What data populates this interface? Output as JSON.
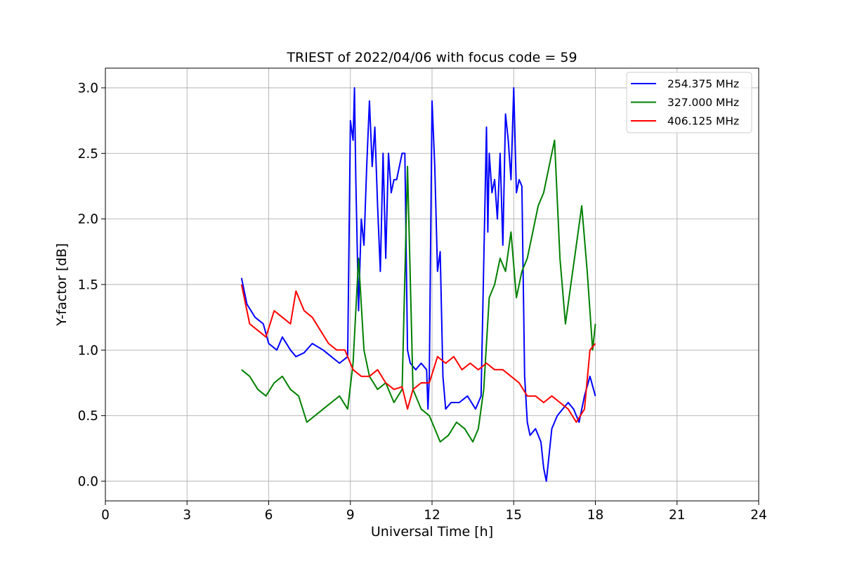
{
  "chart_data": {
    "type": "line",
    "title": "TRIEST of 2022/04/06 with focus code = 59",
    "xlabel": "Universal Time [h]",
    "ylabel": "Y-factor [dB]",
    "xlim": [
      0,
      24
    ],
    "ylim": [
      -0.15,
      3.15
    ],
    "xticks": [
      0,
      3,
      6,
      9,
      12,
      15,
      18,
      21,
      24
    ],
    "xtick_labels": [
      "0",
      "3",
      "6",
      "9",
      "12",
      "15",
      "18",
      "21",
      "24"
    ],
    "yticks": [
      0.0,
      0.5,
      1.0,
      1.5,
      2.0,
      2.5,
      3.0
    ],
    "ytick_labels": [
      "0.0",
      "0.5",
      "1.0",
      "1.5",
      "2.0",
      "2.5",
      "3.0"
    ],
    "grid": true,
    "legend_position": "top-right",
    "series": [
      {
        "name": "254.375 MHz",
        "color": "#0000ff",
        "x": [
          5.0,
          5.2,
          5.5,
          5.8,
          6.0,
          6.3,
          6.5,
          6.8,
          7.0,
          7.3,
          7.6,
          8.0,
          8.3,
          8.6,
          8.9,
          9.0,
          9.1,
          9.15,
          9.2,
          9.3,
          9.4,
          9.5,
          9.6,
          9.7,
          9.8,
          9.9,
          10.0,
          10.1,
          10.2,
          10.3,
          10.4,
          10.5,
          10.6,
          10.7,
          10.8,
          10.9,
          11.0,
          11.1,
          11.2,
          11.4,
          11.6,
          11.8,
          11.85,
          11.9,
          12.0,
          12.1,
          12.2,
          12.3,
          12.4,
          12.5,
          12.7,
          13.0,
          13.3,
          13.6,
          13.8,
          14.0,
          14.05,
          14.1,
          14.2,
          14.3,
          14.4,
          14.5,
          14.6,
          14.7,
          14.8,
          14.9,
          15.0,
          15.1,
          15.2,
          15.3,
          15.4,
          15.5,
          15.6,
          15.8,
          16.0,
          16.1,
          16.2,
          16.4,
          16.6,
          16.8,
          17.0,
          17.2,
          17.4,
          17.6,
          17.8,
          18.0
        ],
        "y": [
          1.55,
          1.35,
          1.25,
          1.2,
          1.05,
          1.0,
          1.1,
          1.0,
          0.95,
          0.98,
          1.05,
          1.0,
          0.95,
          0.9,
          0.95,
          2.75,
          2.6,
          3.0,
          2.3,
          1.3,
          2.0,
          1.8,
          2.4,
          2.9,
          2.4,
          2.7,
          2.1,
          1.6,
          2.5,
          1.7,
          2.5,
          2.2,
          2.3,
          2.3,
          2.4,
          2.5,
          2.5,
          1.0,
          0.9,
          0.85,
          0.9,
          0.85,
          0.55,
          0.8,
          2.9,
          2.4,
          1.6,
          1.75,
          0.8,
          0.55,
          0.6,
          0.6,
          0.65,
          0.55,
          0.65,
          2.7,
          1.9,
          2.5,
          2.2,
          2.3,
          2.0,
          2.5,
          1.8,
          2.8,
          2.6,
          2.3,
          3.0,
          2.2,
          2.3,
          2.25,
          0.8,
          0.45,
          0.35,
          0.4,
          0.3,
          0.1,
          0.0,
          0.4,
          0.5,
          0.55,
          0.6,
          0.55,
          0.45,
          0.65,
          0.8,
          0.65
        ]
      },
      {
        "name": "327.000 MHz",
        "color": "#008000",
        "x": [
          5.0,
          5.3,
          5.6,
          5.9,
          6.2,
          6.5,
          6.8,
          7.1,
          7.4,
          7.7,
          8.0,
          8.3,
          8.6,
          8.9,
          9.1,
          9.3,
          9.5,
          9.7,
          10.0,
          10.3,
          10.6,
          10.9,
          11.1,
          11.3,
          11.6,
          11.9,
          12.1,
          12.3,
          12.6,
          12.9,
          13.2,
          13.5,
          13.7,
          13.9,
          14.1,
          14.3,
          14.5,
          14.7,
          14.9,
          15.1,
          15.3,
          15.5,
          15.7,
          15.9,
          16.1,
          16.3,
          16.5,
          16.7,
          16.9,
          17.1,
          17.3,
          17.5,
          17.7,
          17.9,
          18.0
        ],
        "y": [
          0.85,
          0.8,
          0.7,
          0.65,
          0.75,
          0.8,
          0.7,
          0.65,
          0.45,
          0.5,
          0.55,
          0.6,
          0.65,
          0.55,
          0.9,
          1.7,
          1.0,
          0.8,
          0.7,
          0.75,
          0.6,
          0.7,
          2.4,
          0.7,
          0.55,
          0.5,
          0.4,
          0.3,
          0.35,
          0.45,
          0.4,
          0.3,
          0.4,
          0.7,
          1.4,
          1.5,
          1.7,
          1.6,
          1.9,
          1.4,
          1.6,
          1.7,
          1.9,
          2.1,
          2.2,
          2.4,
          2.6,
          1.7,
          1.2,
          1.5,
          1.8,
          2.1,
          1.6,
          1.0,
          1.2
        ]
      },
      {
        "name": "406.125 MHz",
        "color": "#ff0000",
        "x": [
          5.0,
          5.3,
          5.6,
          5.9,
          6.2,
          6.5,
          6.8,
          7.0,
          7.3,
          7.6,
          7.9,
          8.2,
          8.5,
          8.8,
          9.1,
          9.4,
          9.7,
          10.0,
          10.3,
          10.6,
          10.9,
          11.1,
          11.3,
          11.6,
          11.9,
          12.2,
          12.5,
          12.8,
          13.1,
          13.4,
          13.7,
          14.0,
          14.3,
          14.6,
          14.9,
          15.2,
          15.5,
          15.8,
          16.1,
          16.4,
          16.7,
          17.0,
          17.3,
          17.6,
          17.8,
          18.0
        ],
        "y": [
          1.5,
          1.2,
          1.15,
          1.1,
          1.3,
          1.25,
          1.2,
          1.45,
          1.3,
          1.25,
          1.15,
          1.05,
          1.0,
          1.0,
          0.85,
          0.8,
          0.8,
          0.85,
          0.75,
          0.7,
          0.72,
          0.55,
          0.7,
          0.75,
          0.75,
          0.95,
          0.9,
          0.95,
          0.85,
          0.9,
          0.85,
          0.9,
          0.85,
          0.85,
          0.8,
          0.75,
          0.65,
          0.65,
          0.6,
          0.65,
          0.6,
          0.55,
          0.45,
          0.55,
          1.0,
          1.05
        ]
      }
    ]
  }
}
